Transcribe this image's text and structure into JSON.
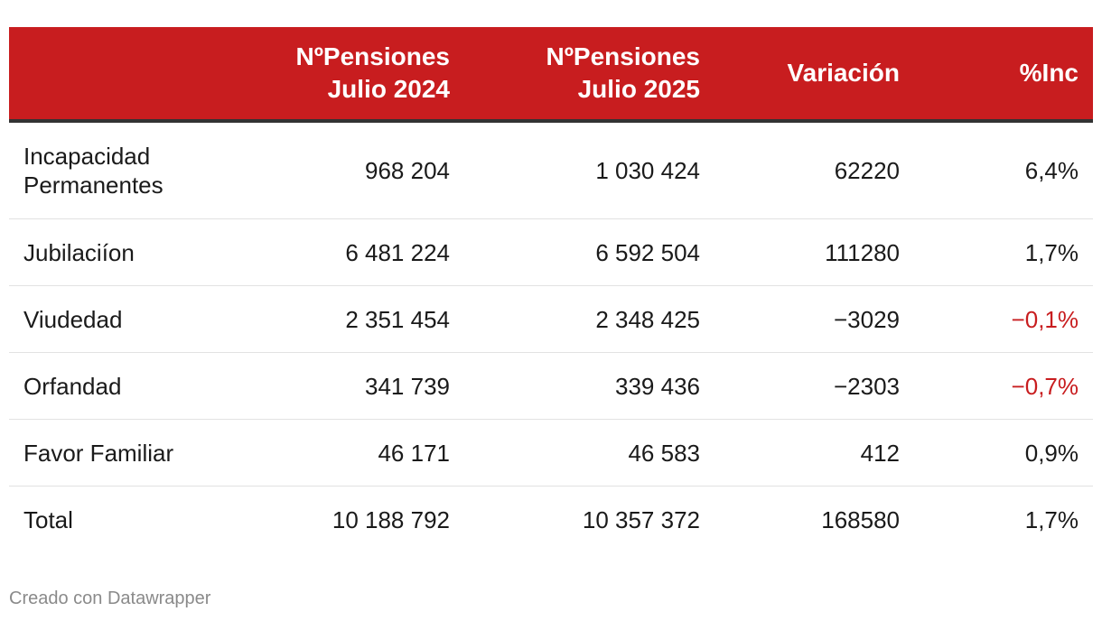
{
  "chart_data": {
    "type": "table",
    "columns": [
      "",
      "NºPensiones Julio 2024",
      "NºPensiones Julio 2025",
      "Variación",
      "%Inc"
    ],
    "header": {
      "col1": [
        "NºPensiones",
        "Julio 2024"
      ],
      "col2": [
        "NºPensiones",
        "Julio 2025"
      ],
      "col3": "Variación",
      "col4": "%Inc"
    },
    "rows": [
      {
        "label": "Incapacidad Permanentes",
        "julio_2024": "968 204",
        "julio_2025": "1 030 424",
        "variacion": "62220",
        "inc": "6,4%"
      },
      {
        "label": "Jubilaciíon",
        "julio_2024": "6 481 224",
        "julio_2025": "6 592 504",
        "variacion": "111280",
        "inc": "1,7%"
      },
      {
        "label": "Viudedad",
        "julio_2024": "2 351 454",
        "julio_2025": "2 348 425",
        "variacion": "−3029",
        "inc": "−0,1%"
      },
      {
        "label": "Orfandad",
        "julio_2024": "341 739",
        "julio_2025": "339 436",
        "variacion": "−2303",
        "inc": "−0,7%"
      },
      {
        "label": "Favor Familiar",
        "julio_2024": "46 171",
        "julio_2025": "46 583",
        "variacion": "412",
        "inc": "0,9%"
      },
      {
        "label": "Total",
        "julio_2024": "10 188 792",
        "julio_2025": "10 357 372",
        "variacion": "168580",
        "inc": "1,7%"
      }
    ],
    "colors": {
      "header_bg": "#c81d1f",
      "header_text": "#ffffff",
      "negative_text": "#c81d1f"
    }
  },
  "footer": "Creado con Datawrapper"
}
